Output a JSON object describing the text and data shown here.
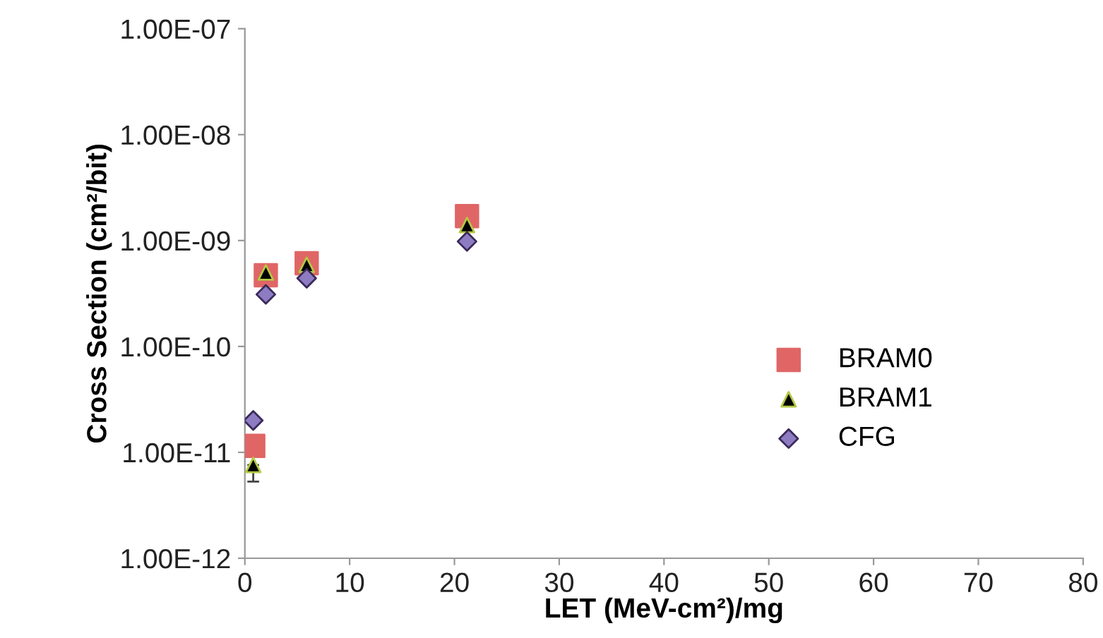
{
  "chart_data": {
    "type": "scatter",
    "xlabel": "LET (MeV-cm²)/mg",
    "ylabel": "Cross Section (cm²/bit)",
    "log": "y",
    "xlim": [
      0,
      80
    ],
    "xticks": [
      0,
      10,
      20,
      30,
      40,
      50,
      60,
      70,
      80
    ],
    "ylim": [
      1e-12,
      1e-07
    ],
    "yticks": [
      {
        "value": 1e-12,
        "label": "1.00E-12"
      },
      {
        "value": 1e-11,
        "label": "1.00E-11"
      },
      {
        "value": 1e-10,
        "label": "1.00E-10"
      },
      {
        "value": 1e-09,
        "label": "1.00E-09"
      },
      {
        "value": 1e-08,
        "label": "1.00E-08"
      },
      {
        "value": 1e-07,
        "label": "1.00E-07"
      }
    ],
    "grid": false,
    "legend": "right",
    "series": [
      {
        "name": "BRAM0",
        "color": "#e06666",
        "marker": "square",
        "x": [
          0.8,
          2.0,
          5.9,
          21.2
        ],
        "values": [
          1.15e-11,
          4.7e-10,
          6.1e-10,
          1.7e-09
        ]
      },
      {
        "name": "BRAM1",
        "color": "#000000",
        "marker": "triangle",
        "x": [
          0.8,
          2.0,
          5.9,
          21.2
        ],
        "values": [
          7.6e-12,
          5e-10,
          5.9e-10,
          1.4e-09
        ],
        "errors": [
          [
            5.3e-12,
            7.6e-12
          ],
          null,
          null,
          null
        ]
      },
      {
        "name": "CFG",
        "color": "#8e7cc3",
        "marker": "diamond",
        "x": [
          0.8,
          2.0,
          5.9,
          21.2
        ],
        "values": [
          2e-11,
          3.1e-10,
          4.4e-10,
          9.8e-10
        ]
      }
    ]
  }
}
